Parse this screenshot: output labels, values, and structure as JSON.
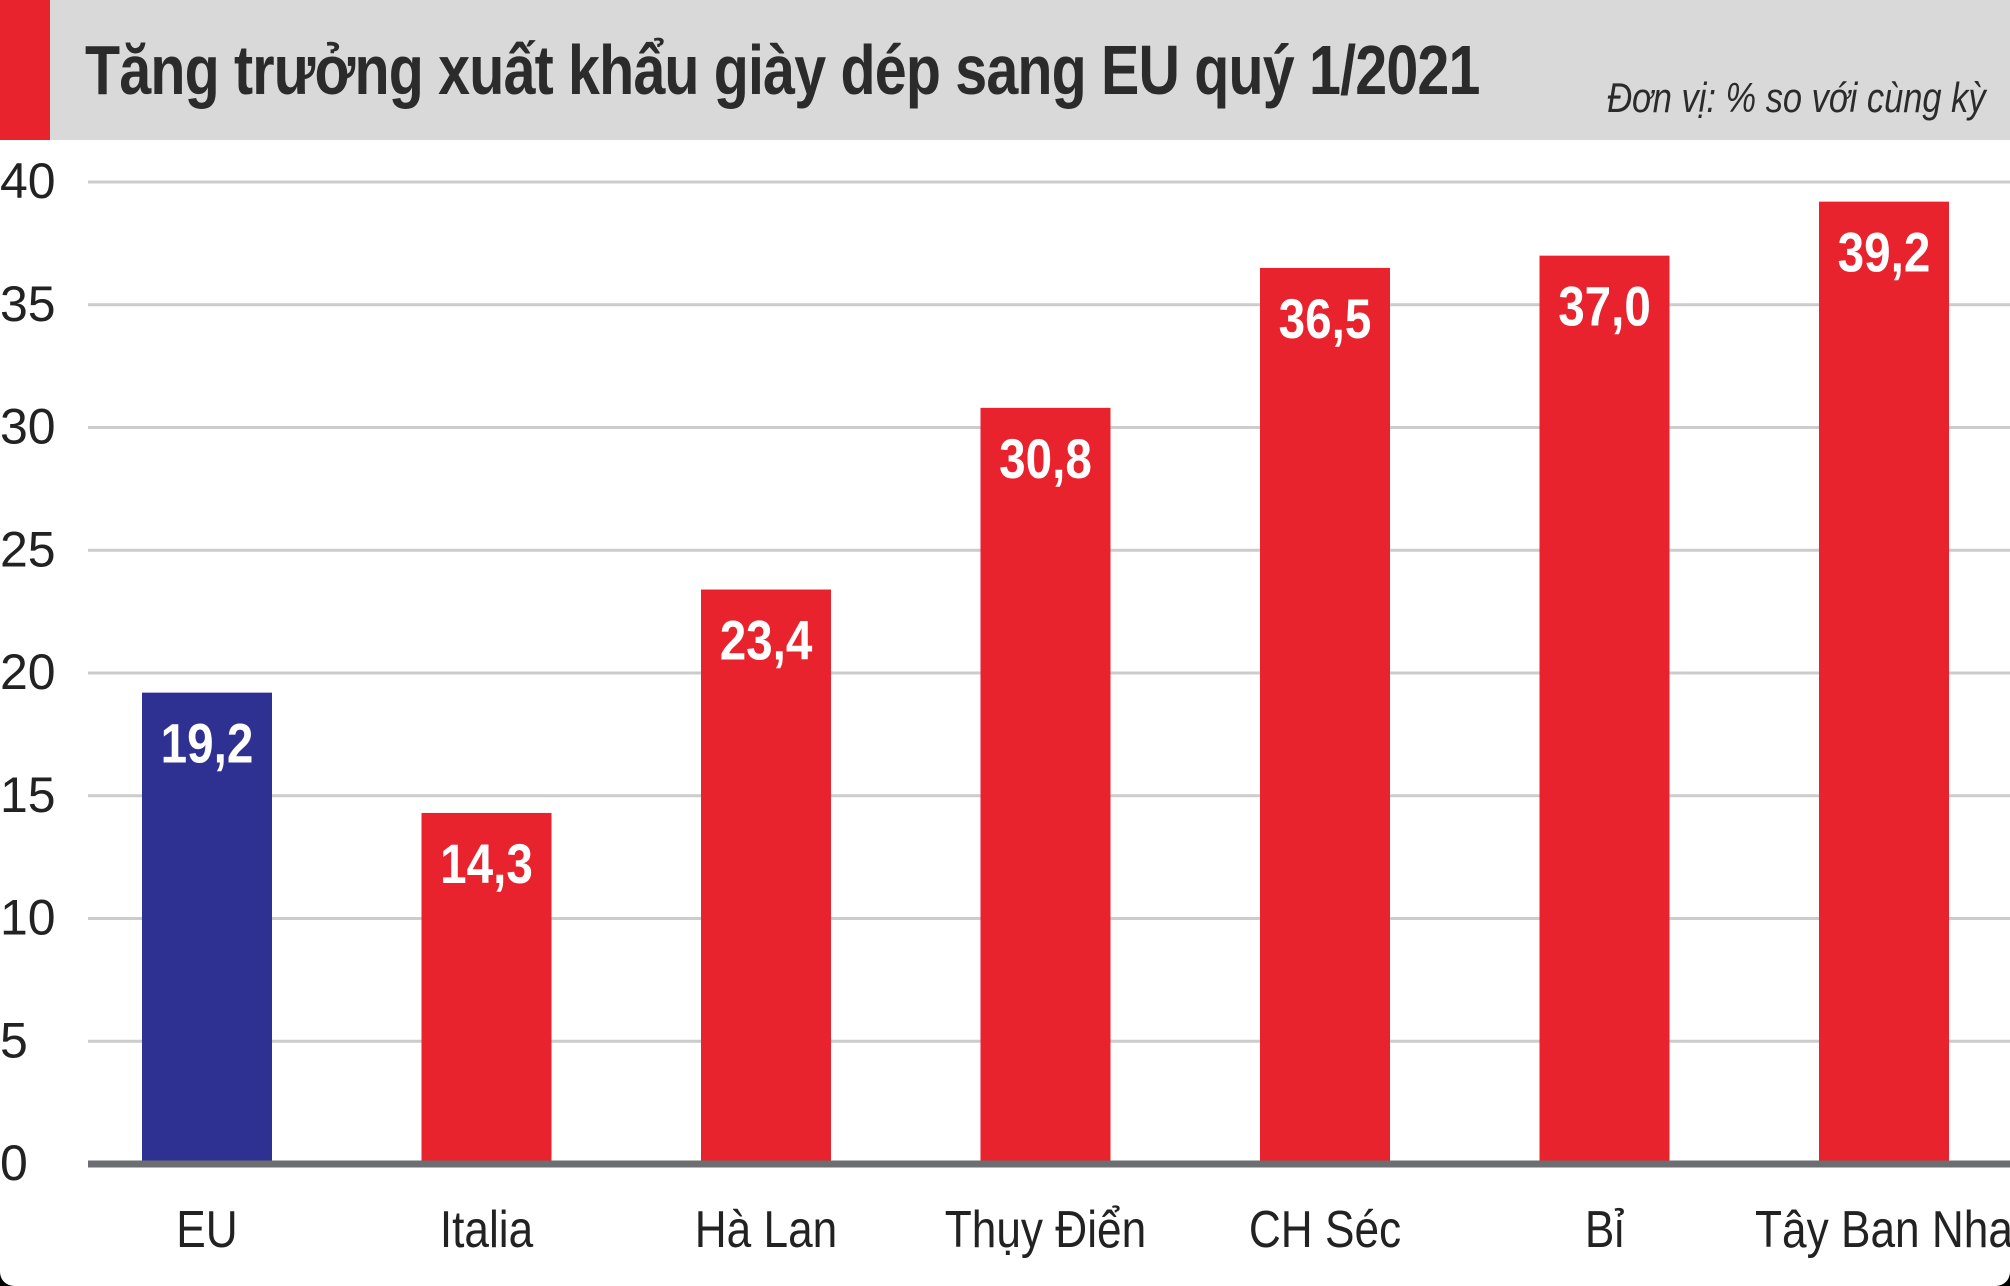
{
  "header": {
    "title": "Tăng trưởng xuất khẩu giày dép sang EU quý 1/2021",
    "unit": "Đơn vị: % so với cùng kỳ"
  },
  "colors": {
    "accent": "#e8232e",
    "bar_default": "#e8232e",
    "bar_highlight": "#2e3192",
    "grid": "#cccccc",
    "axis": "#6d6e71"
  },
  "chart_data": {
    "type": "bar",
    "title": "Tăng trưởng xuất khẩu giày dép sang EU quý 1/2021",
    "subtitle": "Đơn vị: % so với cùng kỳ",
    "xlabel": "",
    "ylabel": "",
    "ylim": [
      0,
      40
    ],
    "yticks": [
      0,
      5,
      10,
      15,
      20,
      25,
      30,
      35,
      40
    ],
    "grid": true,
    "categories": [
      "EU",
      "Italia",
      "Hà Lan",
      "Thụy Điển",
      "CH Séc",
      "Bỉ",
      "Tây Ban Nha"
    ],
    "values": [
      19.2,
      14.3,
      23.4,
      30.8,
      36.5,
      37.0,
      39.2
    ],
    "value_labels": [
      "19,2",
      "14,3",
      "23,4",
      "30,8",
      "36,5",
      "37,0",
      "39,2"
    ],
    "highlight_category": "EU"
  }
}
